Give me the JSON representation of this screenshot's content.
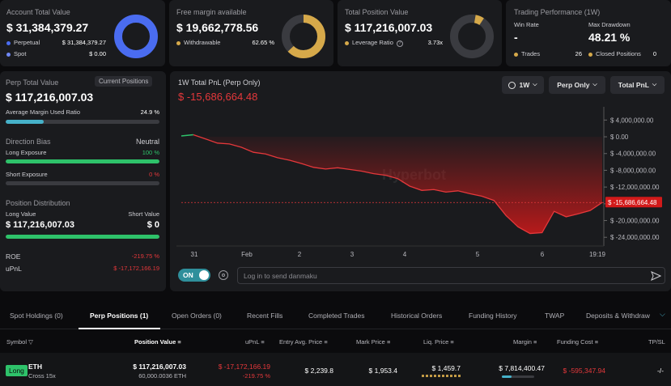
{
  "account": {
    "label": "Account Total Value",
    "value": "$ 31,384,379.27",
    "rows": [
      {
        "name": "Perpetual",
        "value": "$ 31,384,379.27",
        "color": "#4a6cf0"
      },
      {
        "name": "Spot",
        "value": "$ 0.00",
        "color": "#6f87f5"
      }
    ]
  },
  "margin": {
    "label": "Free margin available",
    "value": "$ 19,662,778.56",
    "row_name": "Withdrawable",
    "row_value": "62.65 %",
    "color": "#d6a94a",
    "fraction": 0.6265
  },
  "position": {
    "label": "Total Position Value",
    "value": "$ 117,216,007.03",
    "row_name": "Leverage Ratio",
    "row_value": "3.73x",
    "color": "#d6a94a"
  },
  "performance": {
    "label": "Trading Performance (1W)",
    "win_rate_label": "Win Rate",
    "win_rate": "-",
    "drawdown_label": "Max Drawdown",
    "drawdown": "48.21 %",
    "trades_label": "Trades",
    "trades": "26",
    "closed_label": "Closed Positions",
    "closed": "0"
  },
  "perp": {
    "label": "Perp Total Value",
    "button": "Current Positions",
    "value": "$ 117,216,007.03",
    "margin_ratio_label": "Average Margin Used Ratio",
    "margin_ratio": "24.9 %",
    "margin_ratio_fraction": 0.249,
    "bias_label": "Direction Bias",
    "bias": "Neutral",
    "long_exposure_label": "Long Exposure",
    "long_exposure": "100 %",
    "short_exposure_label": "Short Exposure",
    "short_exposure": "0 %",
    "distribution_label": "Position Distribution",
    "long_value_label": "Long Value",
    "short_value_label": "Short Value",
    "long_value": "$ 117,216,007.03",
    "short_value": "$ 0",
    "roe_label": "ROE",
    "roe": "-219.75 %",
    "upnl_label": "uPnL",
    "upnl": "$ -17,172,166.19"
  },
  "chart": {
    "title": "1W Total PnL (Perp Only)",
    "value": "$ -15,686,664.48",
    "period": "1W",
    "filter": "Perp Only",
    "metric": "Total PnL",
    "watermark": "Hyperbot",
    "danmaku_toggle": "ON",
    "danmaku_placeholder": "Log in to send danmaku"
  },
  "chart_data": {
    "type": "area",
    "title": "1W Total PnL (Perp Only)",
    "x_ticks": [
      "31",
      "Feb",
      "2",
      "3",
      "4",
      "5",
      "6",
      "19:19"
    ],
    "y_ticks": [
      "$ 4,000,000.00",
      "$ 0.00",
      "$ -4,000,000.00",
      "$ -8,000,000.00",
      "$ -12,000,000.00",
      "$ -16,000,000.00",
      "$ -20,000,000.00",
      "$ -24,000,000.00"
    ],
    "ylim": [
      -25500000,
      6000000
    ],
    "current_label": "$ -15,686,664.48",
    "current_value": -15686664.48,
    "y": [
      200000,
      500000,
      -500000,
      -1500000,
      -1700000,
      -2500000,
      -3700000,
      -4100000,
      -5000000,
      -5600000,
      -6400000,
      -7300000,
      -7700000,
      -7400000,
      -7800000,
      -8200000,
      -8800000,
      -9200000,
      -10000000,
      -11800000,
      -12800000,
      -12600000,
      -13200000,
      -12900000,
      -13600000,
      -14200000,
      -15200000,
      -18800000,
      -21500000,
      -23100000,
      -22900000,
      -17800000,
      -19100000,
      -18400000,
      -17600000,
      -15686664
    ]
  },
  "tabs": [
    "Spot Holdings (0)",
    "Perp Positions (1)",
    "Open Orders (0)",
    "Recent Fills",
    "Completed Trades",
    "Historical Orders",
    "Funding History",
    "TWAP",
    "Deposits & Withdraw"
  ],
  "table": {
    "headers": [
      "Symbol",
      "Position Value",
      "uPnL",
      "Entry Avg. Price",
      "Mark Price",
      "Liq. Price",
      "Margin",
      "Funding Cost",
      "TP/SL"
    ],
    "row": {
      "side": "Long",
      "symbol": "ETH",
      "mode": "Cross 15x",
      "position_value": "$ 117,216,007.03",
      "position_size": "60,000.0036 ETH",
      "upnl": "$ -17,172,166.19",
      "upnl_pct": "-219.75 %",
      "entry": "$ 2,239.8",
      "mark": "$ 1,953.4",
      "liq": "$ 1,459.7",
      "margin": "$ 7,814,400.47",
      "funding": "$ -595,347.94",
      "tpsl": "-/-"
    }
  }
}
